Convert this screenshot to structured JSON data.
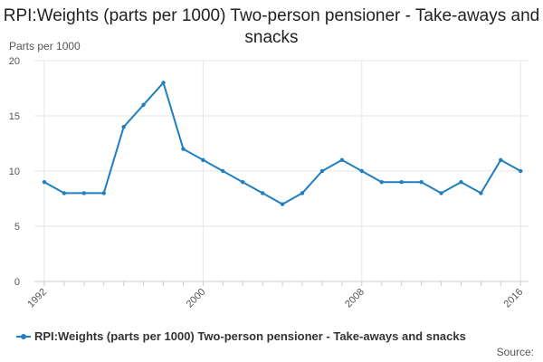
{
  "title": "RPI:Weights (parts per 1000) Two-person pensioner - Take-aways and snacks",
  "source_label": "Source:",
  "colors": {
    "series": "#1f7fc0",
    "grid": "#e6e6e6",
    "axis": "#cccccc"
  },
  "chart_data": {
    "type": "line",
    "title": "RPI:Weights (parts per 1000) Two-person pensioner - Take-aways and snacks",
    "ylabel": "Parts per 1000",
    "xlabel": "",
    "ylim": [
      0,
      20
    ],
    "xlim": [
      1992,
      2016
    ],
    "yticks": [
      0,
      5,
      10,
      15,
      20
    ],
    "xticks": [
      1992,
      2000,
      2008,
      2016
    ],
    "grid": true,
    "legend_position": "bottom",
    "series": [
      {
        "name": "RPI:Weights (parts per 1000) Two-person pensioner - Take-aways and snacks",
        "x": [
          1992,
          1993,
          1994,
          1995,
          1996,
          1997,
          1998,
          1999,
          2000,
          2001,
          2002,
          2003,
          2004,
          2005,
          2006,
          2007,
          2008,
          2009,
          2010,
          2011,
          2012,
          2013,
          2014,
          2015,
          2016
        ],
        "values": [
          9,
          8,
          8,
          8,
          14,
          16,
          18,
          12,
          11,
          10,
          9,
          8,
          7,
          8,
          10,
          11,
          10,
          9,
          9,
          9,
          8,
          9,
          8,
          11,
          10
        ]
      }
    ]
  }
}
